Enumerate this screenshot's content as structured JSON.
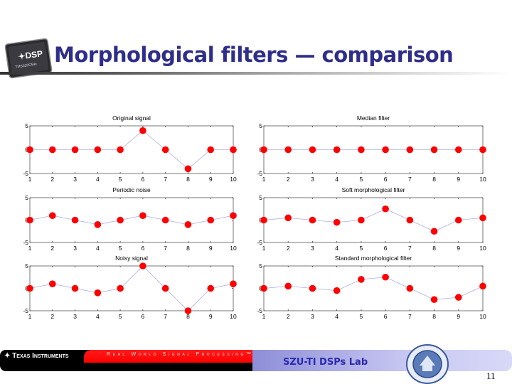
{
  "slide": {
    "title": "Morphological filters — comparison",
    "chip_logo": {
      "brand": "DSP",
      "part": "TMS320C54x"
    },
    "footer": {
      "ti_logo": "Texas Instruments",
      "tagline": "Real World Signal Processing™",
      "lab_name": "SZU-TI DSPs Lab",
      "seal": "Shenzhen University 1983"
    },
    "page_number": "11"
  },
  "colors": {
    "title": "#2e2e8a",
    "marker": "#ff0000",
    "line": "#aab0e4",
    "lab": "#2a2ab0"
  },
  "chart_data": [
    {
      "type": "line",
      "title": "Original signal",
      "x": [
        1,
        2,
        3,
        4,
        5,
        6,
        7,
        8,
        9,
        10
      ],
      "values": [
        0,
        0,
        0,
        0,
        0,
        4,
        0,
        -4,
        0,
        0
      ],
      "ylim": [
        -5,
        5
      ],
      "xlim": [
        1,
        10
      ],
      "yticks": [
        "5",
        "0",
        "-5"
      ],
      "xticks": [
        "1",
        "2",
        "3",
        "4",
        "5",
        "6",
        "7",
        "8",
        "9",
        "10"
      ],
      "marker": "filled-circle",
      "grid": false
    },
    {
      "type": "line",
      "title": "Periodic noise",
      "x": [
        1,
        2,
        3,
        4,
        5,
        6,
        7,
        8,
        9,
        10
      ],
      "values": [
        0,
        1,
        0,
        -1,
        0,
        1,
        0,
        -1,
        0,
        1
      ],
      "ylim": [
        -5,
        5
      ],
      "xlim": [
        1,
        10
      ],
      "yticks": [
        "5",
        "0",
        "-5"
      ],
      "xticks": [
        "1",
        "2",
        "3",
        "4",
        "5",
        "6",
        "7",
        "8",
        "9",
        "10"
      ],
      "marker": "filled-circle",
      "grid": false
    },
    {
      "type": "line",
      "title": "Noisy signal",
      "x": [
        1,
        2,
        3,
        4,
        5,
        6,
        7,
        8,
        9,
        10
      ],
      "values": [
        0,
        1,
        0,
        -1,
        0,
        5,
        0,
        -5,
        0,
        1
      ],
      "ylim": [
        -5,
        5
      ],
      "xlim": [
        1,
        10
      ],
      "yticks": [
        "5",
        "0",
        "-5"
      ],
      "xticks": [
        "1",
        "2",
        "3",
        "4",
        "5",
        "6",
        "7",
        "8",
        "9",
        "10"
      ],
      "marker": "filled-circle",
      "grid": false
    },
    {
      "type": "line",
      "title": "Median filter",
      "x": [
        1,
        2,
        3,
        4,
        5,
        6,
        7,
        8,
        9,
        10
      ],
      "values": [
        0,
        0,
        0,
        0,
        0,
        0,
        0,
        0,
        0,
        0
      ],
      "ylim": [
        -5,
        5
      ],
      "xlim": [
        1,
        10
      ],
      "yticks": [
        "5",
        "0",
        "-5"
      ],
      "xticks": [
        "1",
        "2",
        "3",
        "4",
        "5",
        "6",
        "7",
        "8",
        "9",
        "10"
      ],
      "marker": "filled-circle",
      "grid": false
    },
    {
      "type": "line",
      "title": "Soft morphological filter",
      "x": [
        1,
        2,
        3,
        4,
        5,
        6,
        7,
        8,
        9,
        10
      ],
      "values": [
        0,
        0.5,
        0,
        -0.5,
        0,
        2.5,
        0,
        -2.5,
        0,
        0.5
      ],
      "ylim": [
        -5,
        5
      ],
      "xlim": [
        1,
        10
      ],
      "yticks": [
        "5",
        "0",
        "-5"
      ],
      "xticks": [
        "1",
        "2",
        "3",
        "4",
        "5",
        "6",
        "7",
        "8",
        "9",
        "10"
      ],
      "marker": "filled-circle",
      "grid": false
    },
    {
      "type": "line",
      "title": "Standard morphological filter",
      "x": [
        1,
        2,
        3,
        4,
        5,
        6,
        7,
        8,
        9,
        10
      ],
      "values": [
        0,
        0.5,
        0,
        -0.5,
        2,
        2.5,
        0,
        -2.5,
        -2,
        0.5
      ],
      "ylim": [
        -5,
        5
      ],
      "xlim": [
        1,
        10
      ],
      "yticks": [
        "5",
        "0",
        "-5"
      ],
      "xticks": [
        "1",
        "2",
        "3",
        "4",
        "5",
        "6",
        "7",
        "8",
        "9",
        "10"
      ],
      "marker": "filled-circle",
      "grid": false
    }
  ]
}
